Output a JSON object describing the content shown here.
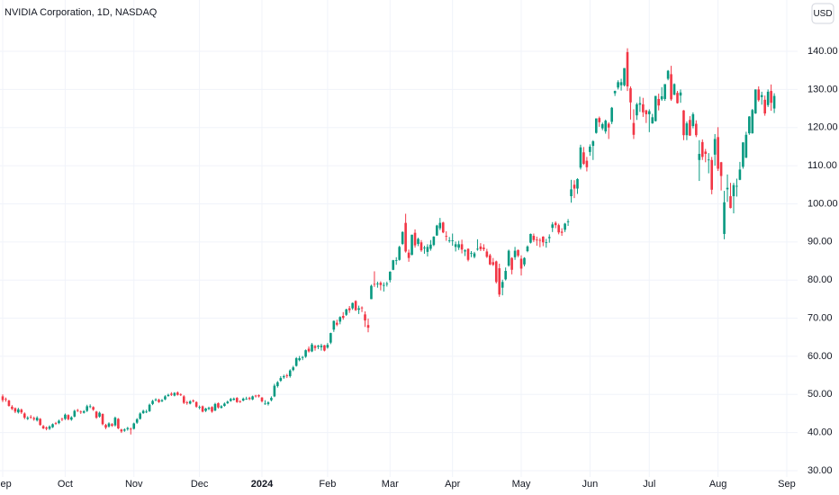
{
  "chart_data": {
    "type": "candlestick",
    "title": "NVIDIA Corporation, 1D, NASDAQ",
    "currency": "USD",
    "up_color": "#089981",
    "down_color": "#f23645",
    "grid": true,
    "ylim": [
      28.35,
      153.46
    ],
    "yticks": [
      {
        "value": 30,
        "label": "30.00"
      },
      {
        "value": 40,
        "label": "40.00"
      },
      {
        "value": 50,
        "label": "50.00"
      },
      {
        "value": 60,
        "label": "60.00"
      },
      {
        "value": 70,
        "label": "70.00"
      },
      {
        "value": 80,
        "label": "80.00"
      },
      {
        "value": 90,
        "label": "90.00"
      },
      {
        "value": 100,
        "label": "100.00"
      },
      {
        "value": 110,
        "label": "110.00"
      },
      {
        "value": 120,
        "label": "120.00"
      },
      {
        "value": 130,
        "label": "130.00"
      },
      {
        "value": 140,
        "label": "140.00"
      }
    ],
    "categories": [
      "Sep",
      null,
      null,
      null,
      null,
      null,
      null,
      null,
      null,
      null,
      null,
      null,
      null,
      null,
      null,
      null,
      null,
      null,
      null,
      null,
      "Oct",
      null,
      null,
      null,
      null,
      null,
      null,
      null,
      null,
      null,
      null,
      null,
      null,
      null,
      null,
      null,
      null,
      null,
      null,
      null,
      null,
      null,
      "Nov",
      null,
      null,
      null,
      null,
      null,
      null,
      null,
      null,
      null,
      null,
      null,
      null,
      null,
      null,
      null,
      null,
      null,
      null,
      null,
      null,
      "Dec",
      null,
      null,
      null,
      null,
      null,
      null,
      null,
      null,
      null,
      null,
      null,
      null,
      null,
      null,
      null,
      null,
      null,
      null,
      null,
      "2024",
      null,
      null,
      null,
      null,
      null,
      null,
      null,
      null,
      null,
      null,
      null,
      null,
      null,
      null,
      null,
      null,
      null,
      null,
      null,
      null,
      "Feb",
      null,
      null,
      null,
      null,
      null,
      null,
      null,
      null,
      null,
      null,
      null,
      null,
      null,
      null,
      null,
      null,
      null,
      null,
      null,
      "Mar",
      null,
      null,
      null,
      null,
      null,
      null,
      null,
      null,
      null,
      null,
      null,
      null,
      null,
      null,
      null,
      null,
      null,
      null,
      null,
      "Apr",
      null,
      null,
      null,
      null,
      null,
      null,
      null,
      null,
      null,
      null,
      null,
      null,
      null,
      null,
      null,
      null,
      null,
      null,
      null,
      null,
      null,
      "May",
      null,
      null,
      null,
      null,
      null,
      null,
      null,
      null,
      null,
      null,
      null,
      null,
      null,
      null,
      null,
      null,
      null,
      null,
      null,
      null,
      null,
      "Jun",
      null,
      null,
      null,
      null,
      null,
      null,
      null,
      null,
      null,
      null,
      null,
      null,
      null,
      null,
      null,
      null,
      null,
      null,
      "Jul",
      null,
      null,
      null,
      null,
      null,
      null,
      null,
      null,
      null,
      null,
      null,
      null,
      null,
      null,
      null,
      null,
      null,
      null,
      null,
      null,
      null,
      "Aug",
      null,
      null,
      null,
      null,
      null,
      null,
      null,
      null,
      null,
      null,
      null,
      null,
      null,
      null,
      null,
      null,
      null,
      null,
      null,
      null,
      null,
      "Sep"
    ],
    "open": [
      49.5,
      48.8,
      48.4,
      46.8,
      46.4,
      45.3,
      46.0,
      45.0,
      43.6,
      44.1,
      43.8,
      43.2,
      43.6,
      41.7,
      41.3,
      41.0,
      41.4,
      42.5,
      42.5,
      43.6,
      43.6,
      44.6,
      43.4,
      44.2,
      45.9,
      45.5,
      45.2,
      45.7,
      46.8,
      46.7,
      45.5,
      44.2,
      44.9,
      42.0,
      41.6,
      42.2,
      41.9,
      43.6,
      40.8,
      40.5,
      40.9,
      41.0,
      41.0,
      42.6,
      43.6,
      45.1,
      45.4,
      45.6,
      47.5,
      48.5,
      48.6,
      48.2,
      48.7,
      49.6,
      50.2,
      49.7,
      50.5,
      50.0,
      49.5,
      47.9,
      47.6,
      48.4,
      48.0,
      46.5,
      46.9,
      45.7,
      46.2,
      46.7,
      45.8,
      47.7,
      46.5,
      47.0,
      47.7,
      48.3,
      48.6,
      49.1,
      48.2,
      48.4,
      48.9,
      49.1,
      48.7,
      49.7,
      49.8,
      49.2,
      47.5,
      47.5,
      48.5,
      49.5,
      52.2,
      53.6,
      54.5,
      55.0,
      54.8,
      56.4,
      57.5,
      59.0,
      59.6,
      59.9,
      62.0,
      61.3,
      62.7,
      62.5,
      62.4,
      62.9,
      62.3,
      63.6,
      67.0,
      68.8,
      69.1,
      70.6,
      70.9,
      72.6,
      72.6,
      74.5,
      72.2,
      72.8,
      71.0,
      68.2,
      75.0,
      79.0,
      79.0,
      79.3,
      78.6,
      79.0,
      80.0,
      82.7,
      85.1,
      85.3,
      89.5,
      95.0,
      87.2,
      86.6,
      92.4,
      89.5,
      89.9,
      88.3,
      87.4,
      88.2,
      89.2,
      91.7,
      93.6,
      95.1,
      91.6,
      90.3,
      90.3,
      88.7,
      88.5,
      89.4,
      87.5,
      88.2,
      87.0,
      86.1,
      88.2,
      88.8,
      88.5,
      87.5,
      86.5,
      84.7,
      84.9,
      83.1,
      78.0,
      80.2,
      83.8,
      85.8,
      86.0,
      87.9,
      85.6,
      84.1,
      87.6,
      89.8,
      91.6,
      90.6,
      90.5,
      91.4,
      89.8,
      91.0,
      93.7,
      95.0,
      94.4,
      92.7,
      93.2,
      95.2,
      102.0,
      105.0,
      104.0,
      109.5,
      113.5,
      111.3,
      113.6,
      115.2,
      118.6,
      122.5,
      119.8,
      119.0,
      121.0,
      121.5,
      129.0,
      130.5,
      131.1,
      131.1,
      139.8,
      130.3,
      121.2,
      123.2,
      126.0,
      126.1,
      124.5,
      123.5,
      121.1,
      121.7,
      127.5,
      127.4,
      127.5,
      132.8,
      134.0,
      128.6,
      129.1,
      128.4,
      124.5,
      118.0,
      122.0,
      120.4,
      121.0,
      111.5,
      116.2,
      113.7,
      111.5,
      111.5,
      112.9,
      117.5,
      110.9,
      92.1,
      103.8,
      102.0,
      102.0,
      104.6,
      106.3,
      109.7,
      112.1,
      118.5,
      118.5,
      123.7,
      130.0,
      128.0,
      127.3,
      125.9,
      129.6,
      125.0,
      null,
      null,
      null,
      null
    ],
    "high": [
      50.0,
      49.2,
      48.6,
      47.2,
      46.6,
      46.5,
      46.3,
      45.3,
      44.3,
      44.6,
      44.2,
      44.3,
      43.8,
      42.0,
      41.6,
      41.9,
      42.4,
      42.8,
      43.4,
      43.9,
      45.0,
      44.8,
      44.3,
      46.0,
      46.2,
      45.8,
      45.9,
      47.3,
      47.4,
      46.9,
      45.7,
      45.5,
      45.0,
      42.3,
      42.7,
      42.5,
      44.2,
      43.8,
      41.0,
      41.1,
      41.5,
      41.3,
      42.6,
      43.8,
      45.3,
      46.0,
      46.0,
      47.6,
      48.6,
      49.0,
      48.9,
      48.8,
      49.8,
      50.2,
      50.6,
      50.6,
      50.8,
      50.3,
      49.8,
      48.3,
      48.5,
      48.7,
      48.2,
      47.1,
      47.1,
      46.5,
      46.8,
      46.9,
      47.8,
      47.9,
      47.2,
      47.9,
      48.4,
      49.1,
      49.2,
      49.3,
      48.5,
      49.2,
      49.4,
      49.4,
      49.7,
      49.9,
      50.0,
      49.3,
      48.5,
      48.2,
      49.5,
      52.8,
      53.5,
      54.8,
      55.2,
      55.4,
      56.6,
      57.5,
      59.8,
      60.1,
      60.1,
      61.8,
      62.6,
      63.5,
      63.0,
      63.0,
      63.3,
      63.0,
      63.5,
      66.2,
      69.4,
      69.6,
      70.5,
      71.6,
      72.5,
      73.2,
      74.1,
      74.7,
      73.3,
      73.1,
      71.8,
      69.9,
      78.8,
      82.3,
      79.6,
      79.7,
      79.4,
      79.6,
      82.3,
      85.3,
      86.0,
      89.0,
      92.8,
      97.4,
      88.0,
      91.9,
      93.3,
      91.1,
      90.5,
      89.0,
      89.4,
      90.5,
      91.5,
      94.5,
      96.3,
      95.3,
      92.8,
      91.3,
      92.2,
      90.1,
      90.3,
      90.6,
      88.1,
      88.3,
      87.6,
      87.4,
      90.7,
      89.7,
      89.4,
      88.2,
      86.9,
      85.8,
      85.1,
      84.3,
      80.1,
      83.3,
      88.0,
      86.0,
      88.7,
      88.0,
      86.5,
      86.0,
      89.1,
      92.2,
      92.2,
      91.4,
      91.0,
      91.5,
      90.8,
      92.0,
      95.2,
      95.4,
      94.8,
      93.6,
      95.0,
      96.0,
      106.3,
      106.2,
      106.7,
      115.5,
      114.9,
      112.3,
      115.6,
      116.7,
      122.4,
      122.9,
      121.3,
      122.1,
      121.4,
      125.4,
      129.7,
      132.4,
      132.8,
      135.6,
      140.8,
      130.8,
      124.8,
      126.5,
      128.1,
      127.8,
      124.7,
      124.8,
      123.6,
      128.3,
      128.9,
      130.6,
      131.4,
      135.1,
      136.2,
      131.6,
      129.6,
      130.0,
      124.6,
      121.6,
      123.0,
      124.0,
      121.9,
      116.7,
      116.9,
      114.4,
      113.3,
      112.3,
      118.3,
      120.1,
      111.0,
      103.4,
      107.7,
      105.5,
      105.5,
      106.6,
      111.0,
      116.2,
      118.9,
      123.0,
      124.9,
      130.0,
      130.8,
      129.4,
      128.4,
      130.0,
      131.3,
      129.0,
      null,
      null,
      null,
      null
    ],
    "low": [
      48.0,
      48.1,
      46.8,
      45.9,
      45.1,
      45.0,
      44.9,
      43.5,
      43.3,
      43.6,
      43.1,
      42.9,
      41.8,
      40.9,
      40.6,
      40.7,
      41.2,
      42.0,
      42.2,
      43.0,
      43.3,
      43.2,
      43.1,
      44.0,
      45.4,
      44.9,
      45.0,
      45.4,
      46.4,
      45.7,
      43.6,
      43.9,
      41.9,
      40.9,
      41.3,
      41.5,
      41.6,
      40.9,
      39.9,
      40.2,
      40.5,
      39.5,
      40.8,
      42.3,
      43.4,
      44.9,
      45.1,
      45.4,
      47.2,
      48.2,
      47.8,
      48.0,
      48.5,
      49.4,
      49.6,
      49.5,
      49.7,
      49.6,
      47.5,
      47.3,
      47.4,
      47.9,
      46.5,
      46.1,
      45.3,
      45.4,
      45.9,
      45.2,
      45.6,
      46.3,
      46.3,
      46.8,
      47.5,
      48.1,
      48.4,
      47.8,
      47.8,
      48.2,
      48.6,
      48.5,
      48.5,
      49.2,
      49.2,
      47.9,
      47.3,
      47.1,
      48.2,
      49.3,
      51.8,
      53.3,
      54.1,
      54.3,
      54.4,
      56.1,
      57.3,
      58.7,
      59.0,
      59.6,
      61.0,
      61.1,
      61.5,
      61.9,
      61.5,
      61.3,
      62.0,
      63.2,
      66.4,
      67.9,
      68.4,
      69.6,
      70.6,
      71.4,
      72.2,
      71.9,
      71.1,
      71.6,
      67.7,
      66.3,
      75.0,
      78.2,
      78.0,
      77.3,
      77.0,
      78.3,
      79.4,
      82.6,
      84.0,
      85.1,
      89.2,
      87.2,
      84.8,
      86.5,
      88.5,
      88.9,
      87.4,
      86.9,
      86.2,
      87.7,
      88.9,
      91.6,
      93.1,
      92.3,
      90.3,
      89.8,
      89.0,
      87.5,
      87.9,
      87.0,
      86.3,
      84.9,
      86.0,
      85.7,
      87.7,
      87.6,
      87.6,
      85.8,
      83.9,
      83.7,
      79.1,
      75.6,
      76.0,
      79.9,
      83.5,
      81.5,
      85.3,
      86.0,
      81.2,
      83.6,
      87.3,
      89.6,
      90.0,
      89.0,
      88.6,
      88.9,
      88.5,
      89.8,
      92.6,
      93.6,
      92.0,
      91.6,
      92.6,
      94.2,
      100.3,
      101.5,
      102.6,
      109.0,
      110.2,
      108.5,
      112.6,
      111.5,
      118.4,
      120.2,
      119.3,
      118.4,
      117.0,
      120.9,
      128.3,
      130.0,
      129.7,
      130.8,
      129.6,
      122.1,
      117.0,
      122.0,
      124.1,
      122.8,
      121.2,
      118.8,
      121.0,
      121.6,
      124.5,
      127.0,
      127.0,
      132.4,
      127.0,
      128.5,
      126.3,
      126.5,
      116.7,
      116.7,
      117.8,
      119.8,
      117.5,
      106.0,
      111.5,
      110.9,
      108.0,
      102.5,
      110.0,
      108.6,
      103.5,
      90.7,
      100.5,
      98.8,
      97.5,
      101.9,
      106.2,
      109.2,
      112.0,
      118.1,
      118.4,
      123.6,
      126.8,
      126.0,
      123.1,
      125.4,
      124.4,
      123.8,
      null,
      null,
      null,
      null
    ],
    "close": [
      48.5,
      48.6,
      47.0,
      46.2,
      45.5,
      46.1,
      45.3,
      43.9,
      43.9,
      44.0,
      43.5,
      43.9,
      42.0,
      41.1,
      41.0,
      41.6,
      42.2,
      42.4,
      43.1,
      43.5,
      44.7,
      43.5,
      44.0,
      45.7,
      45.7,
      45.3,
      45.6,
      46.9,
      46.9,
      46.0,
      43.9,
      45.2,
      42.2,
      41.3,
      42.4,
      41.8,
      43.9,
      41.1,
      40.3,
      40.8,
      41.2,
      40.8,
      42.4,
      43.5,
      45.0,
      45.7,
      45.5,
      47.3,
      48.3,
      48.7,
      48.0,
      48.5,
      49.5,
      49.9,
      49.9,
      50.4,
      49.9,
      49.9,
      47.8,
      47.7,
      48.2,
      48.2,
      46.8,
      46.7,
      45.5,
      46.3,
      46.5,
      45.5,
      47.5,
      46.6,
      46.9,
      47.6,
      48.1,
      48.8,
      48.9,
      48.0,
      48.1,
      48.9,
      48.9,
      48.8,
      49.5,
      49.5,
      49.5,
      48.2,
      47.6,
      47.9,
      49.1,
      52.3,
      53.2,
      54.3,
      54.8,
      54.8,
      56.3,
      57.1,
      59.5,
      59.5,
      59.8,
      61.6,
      61.3,
      63.1,
      62.2,
      62.8,
      62.8,
      61.5,
      63.0,
      66.1,
      69.3,
      68.3,
      70.3,
      70.1,
      72.3,
      72.1,
      74.0,
      72.1,
      72.6,
      72.6,
      69.4,
      67.5,
      78.5,
      78.9,
      79.1,
      78.7,
      78.7,
      79.1,
      82.2,
      85.2,
      85.2,
      88.7,
      92.6,
      87.5,
      85.8,
      91.9,
      89.1,
      90.8,
      87.8,
      88.5,
      88.7,
      89.3,
      91.4,
      94.3,
      95.0,
      92.5,
      91.5,
      90.4,
      90.4,
      89.4,
      89.4,
      88.0,
      87.8,
      85.3,
      87.1,
      87.0,
      88.2,
      88.1,
      88.1,
      86.1,
      84.1,
      84.0,
      79.5,
      76.2,
      79.5,
      82.4,
      87.7,
      82.7,
      87.7,
      86.4,
      83.0,
      85.8,
      88.8,
      92.1,
      90.5,
      90.4,
      90.4,
      89.9,
      89.9,
      91.3,
      94.6,
      94.4,
      92.5,
      92.4,
      94.8,
      95.4,
      103.8,
      104.0,
      106.5,
      114.8,
      110.5,
      109.6,
      115.0,
      116.4,
      122.4,
      121.4,
      120.9,
      121.8,
      120.0,
      125.2,
      129.6,
      131.9,
      131.9,
      135.6,
      130.8,
      126.6,
      118.1,
      126.1,
      126.4,
      124.0,
      123.5,
      124.3,
      122.7,
      128.3,
      125.8,
      128.2,
      131.4,
      134.9,
      127.4,
      131.4,
      126.4,
      129.2,
      118.0,
      121.1,
      117.9,
      123.5,
      118.0,
      113.1,
      112.3,
      113.1,
      111.6,
      103.7,
      117.0,
      109.2,
      107.3,
      100.4,
      104.2,
      98.9,
      104.9,
      104.7,
      109.0,
      116.1,
      118.1,
      122.9,
      124.6,
      130.0,
      127.2,
      128.5,
      123.7,
      129.4,
      126.5,
      128.3,
      null,
      null,
      null,
      null
    ]
  }
}
